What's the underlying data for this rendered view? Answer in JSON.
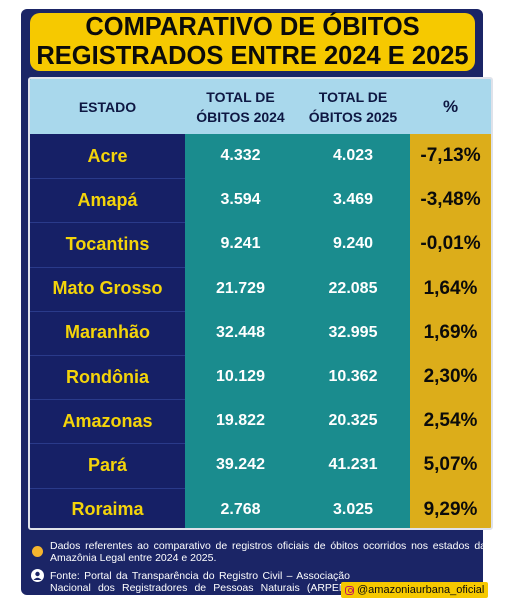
{
  "title_line1": "COMPARATIVO DE ÓBITOS",
  "title_line2": "REGISTRADOS ENTRE 2024 E 2025",
  "chart_data": {
    "type": "table",
    "columns": [
      "ESTADO",
      "TOTAL DE ÓBITOS 2024",
      "TOTAL DE ÓBITOS 2025",
      "%"
    ],
    "header_lines": {
      "state": "ESTADO",
      "y2024_line1": "TOTAL DE",
      "y2024_line2": "ÓBITOS 2024",
      "y2025_line1": "TOTAL DE",
      "y2025_line2": "ÓBITOS 2025",
      "pct": "%"
    },
    "rows": [
      {
        "estado": "Acre",
        "obitos_2024": "4.332",
        "obitos_2025": "4.023",
        "variacao": "-7,13%"
      },
      {
        "estado": "Amapá",
        "obitos_2024": "3.594",
        "obitos_2025": "3.469",
        "variacao": "-3,48%"
      },
      {
        "estado": "Tocantins",
        "obitos_2024": "9.241",
        "obitos_2025": "9.240",
        "variacao": "-0,01%"
      },
      {
        "estado": "Mato Grosso",
        "obitos_2024": "21.729",
        "obitos_2025": "22.085",
        "variacao": "1,64%"
      },
      {
        "estado": "Maranhão",
        "obitos_2024": "32.448",
        "obitos_2025": "32.995",
        "variacao": "1,69%"
      },
      {
        "estado": "Rondônia",
        "obitos_2024": "10.129",
        "obitos_2025": "10.362",
        "variacao": "2,30%"
      },
      {
        "estado": "Amazonas",
        "obitos_2024": "19.822",
        "obitos_2025": "20.325",
        "variacao": "2,54%"
      },
      {
        "estado": "Pará",
        "obitos_2024": "39.242",
        "obitos_2025": "41.231",
        "variacao": "5,07%"
      },
      {
        "estado": "Roraima",
        "obitos_2024": "2.768",
        "obitos_2025": "3.025",
        "variacao": "9,29%"
      }
    ]
  },
  "notes": {
    "note1": "Dados referentes ao comparativo de registros oficiais de óbitos ocorridos nos estados da Amazônia Legal entre 2024 e 2025.",
    "note2": "Fonte: Portal da Transparência do Registro Civil – Associação Nacional dos Registradores de Pessoas Naturais (ARPEN-Brasil)."
  },
  "social_handle": "@amazoniaurbana_oficial",
  "colors": {
    "navy": "#1b2566",
    "yellow": "#f6c900",
    "teal": "#1a8c8e",
    "gold": "#dcad1a",
    "header_blue": "#a9d8ec"
  },
  "icons": [
    "info-bullet-icon",
    "person-icon",
    "instagram-icon"
  ]
}
